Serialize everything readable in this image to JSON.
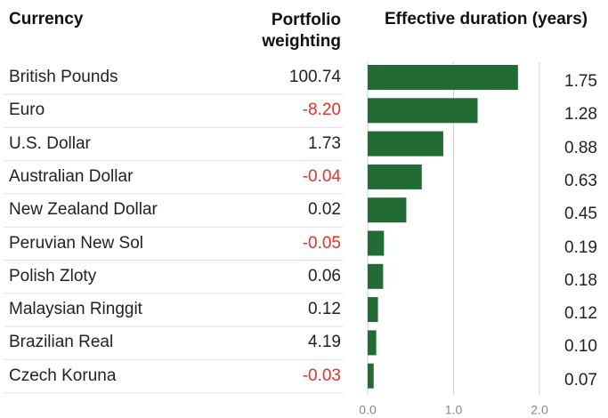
{
  "chart_data": {
    "type": "bar",
    "orientation": "horizontal",
    "columns": [
      "Currency",
      "Portfolio weighting",
      "Effective duration (years)"
    ],
    "categories": [
      "British Pounds",
      "Euro",
      "U.S. Dollar",
      "Australian Dollar",
      "New Zealand Dollar",
      "Peruvian New Sol",
      "Polish Zloty",
      "Malaysian Ringgit",
      "Brazilian Real",
      "Czech Koruna"
    ],
    "weightings": [
      "100.74",
      "-8.20",
      "1.73",
      "-0.04",
      "0.02",
      "-0.05",
      "0.06",
      "0.12",
      "4.19",
      "-0.03"
    ],
    "values": [
      1.75,
      1.28,
      0.88,
      0.63,
      0.45,
      0.19,
      0.18,
      0.12,
      0.1,
      0.07
    ],
    "value_labels": [
      "1.75",
      "1.28",
      "0.88",
      "0.63",
      "0.45",
      "0.19",
      "0.18",
      "0.12",
      "0.10",
      "0.07"
    ],
    "color": "#236b35",
    "negative_color": "#e0342c",
    "xlim": [
      0,
      2
    ],
    "xticks": [
      {
        "value": 0,
        "label": "0.0"
      },
      {
        "value": 1,
        "label": "1.0"
      },
      {
        "value": 2,
        "label": "2.0"
      }
    ],
    "grid": true
  }
}
